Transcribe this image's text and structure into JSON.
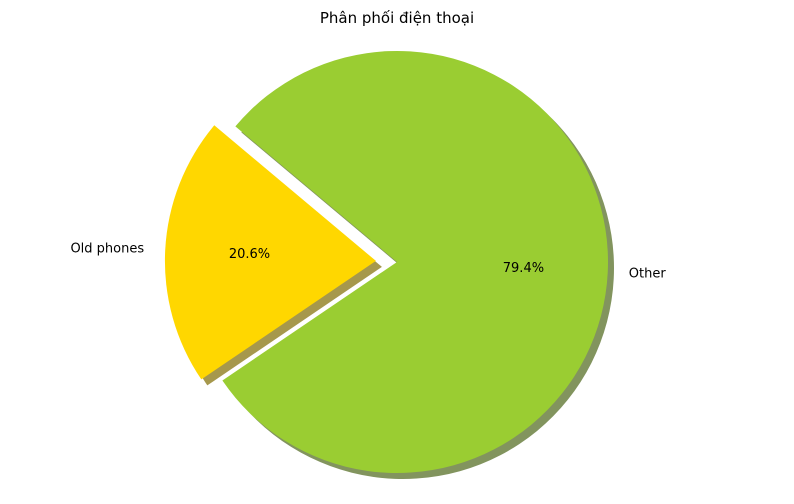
{
  "chart_data": {
    "type": "pie",
    "title": "Phân phối điện thoại",
    "labels": [
      "Old phones",
      "Other"
    ],
    "values": [
      20.6,
      79.4
    ],
    "value_labels": [
      "20.6%",
      "79.4%"
    ],
    "colors": [
      "#ffd700",
      "#9acd32"
    ],
    "explode": [
      true,
      false
    ],
    "shadow": true,
    "start_angle_deg": 140
  }
}
